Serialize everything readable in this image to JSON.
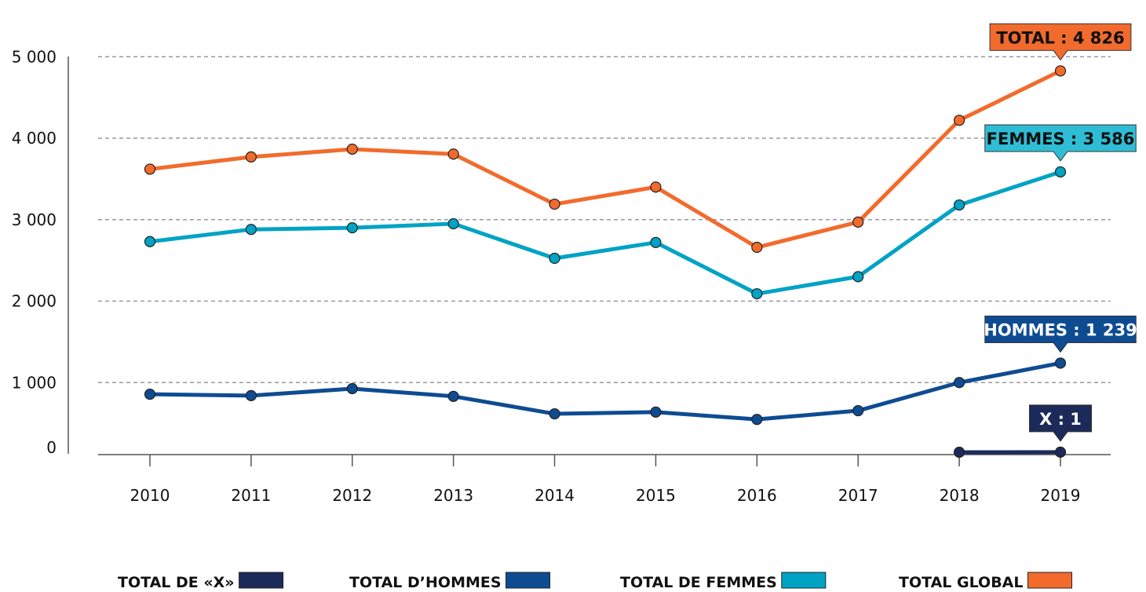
{
  "chart_data": {
    "type": "line",
    "title": "",
    "xlabel": "",
    "ylabel": "",
    "x": [
      "2010",
      "2011",
      "2012",
      "2013",
      "2014",
      "2015",
      "2016",
      "2017",
      "2018",
      "2019"
    ],
    "yticks": [
      0,
      1000,
      2000,
      3000,
      4000,
      5000
    ],
    "ytick_labels": [
      "0",
      "1 000",
      "2 000",
      "3 000",
      "4 000",
      "5 000"
    ],
    "ylim": [
      0,
      5000
    ],
    "grid": "horizontal dashed",
    "legend_position": "bottom",
    "series": [
      {
        "name": "TOTAL DE «X»",
        "color": "#1c2a5a",
        "values": [
          null,
          null,
          null,
          null,
          null,
          null,
          null,
          null,
          0,
          1
        ]
      },
      {
        "name": "TOTAL D’HOMMES",
        "color": "#0e4c92",
        "values": [
          830,
          810,
          910,
          800,
          550,
          575,
          470,
          595,
          1000,
          1239
        ]
      },
      {
        "name": "TOTAL DE FEMMES",
        "color": "#00a3c4",
        "values": [
          2730,
          2880,
          2900,
          2950,
          2525,
          2720,
          2090,
          2300,
          3180,
          3586
        ]
      },
      {
        "name": "TOTAL GLOBAL",
        "color": "#f26b2d",
        "values": [
          3620,
          3770,
          3865,
          3805,
          3190,
          3400,
          2660,
          2970,
          4220,
          4826
        ]
      }
    ],
    "annotations": [
      {
        "text": "TOTAL : 4 826",
        "series": 3,
        "x": "2019",
        "bg": "#f26b2d",
        "fg": "#111111"
      },
      {
        "text": "FEMMES : 3 586",
        "series": 2,
        "x": "2019",
        "bg": "#2fbdd6",
        "fg": "#111111"
      },
      {
        "text": "HOMMES : 1 239",
        "series": 1,
        "x": "2019",
        "bg": "#0e4c92",
        "fg": "#ffffff"
      },
      {
        "text": "X : 1",
        "series": 0,
        "x": "2019",
        "bg": "#1c2a5a",
        "fg": "#ffffff"
      }
    ]
  }
}
